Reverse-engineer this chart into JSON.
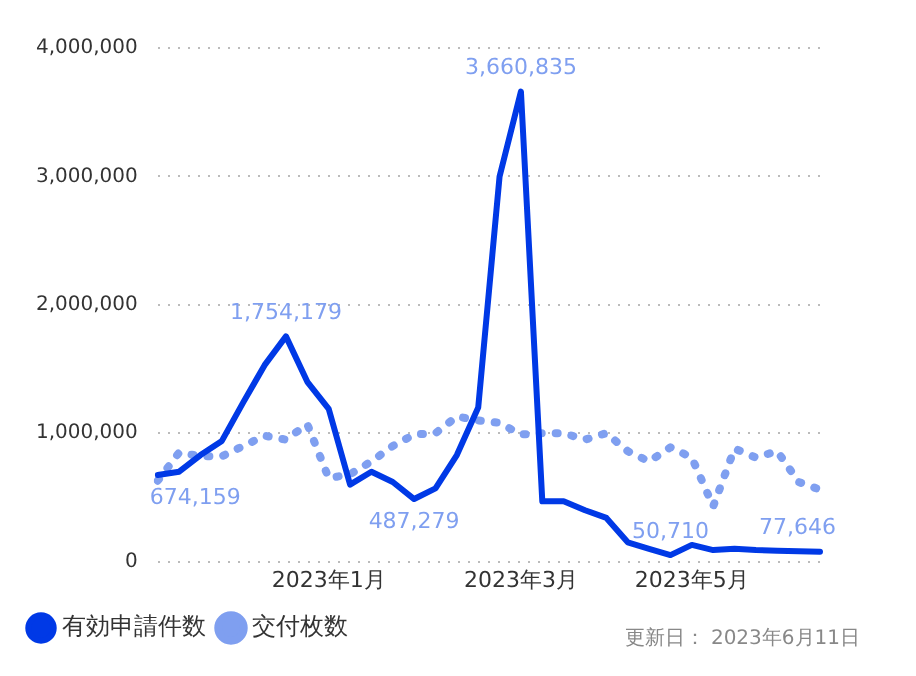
{
  "chart_data": {
    "type": "line",
    "categories": [
      null,
      null,
      null,
      null,
      null,
      null,
      null,
      null,
      "2023年1月",
      null,
      null,
      null,
      null,
      null,
      null,
      null,
      null,
      "2023年3月",
      null,
      null,
      null,
      null,
      null,
      null,
      null,
      "2023年5月",
      null,
      null,
      null,
      null,
      null,
      null
    ],
    "series": [
      {
        "name": "有効申請件数",
        "color": "#0039e6",
        "line_style": "solid",
        "values": [
          674159,
          700000,
          830000,
          940000,
          1240000,
          1530000,
          1754179,
          1400000,
          1190000,
          600000,
          700000,
          620000,
          487279,
          570000,
          830000,
          1200000,
          3000000,
          3660835,
          470000,
          470000,
          400000,
          340000,
          150000,
          100000,
          50710,
          130000,
          90000,
          100000,
          90000,
          85000,
          80000,
          77646
        ],
        "value_labels": [
          "674,159",
          null,
          null,
          null,
          null,
          null,
          "1,754,179",
          null,
          null,
          null,
          null,
          null,
          "487,279",
          null,
          null,
          null,
          null,
          "3,660,835",
          null,
          null,
          null,
          null,
          null,
          null,
          "50,710",
          null,
          null,
          null,
          null,
          null,
          null,
          "77,646"
        ]
      },
      {
        "name": "交付枚数",
        "color": "#7f9ff0",
        "line_style": "dotted",
        "values": [
          630000,
          850000,
          820000,
          820000,
          900000,
          980000,
          950000,
          1070000,
          650000,
          680000,
          780000,
          900000,
          990000,
          1000000,
          1130000,
          1100000,
          1080000,
          990000,
          1000000,
          1000000,
          950000,
          1000000,
          860000,
          780000,
          890000,
          810000,
          430000,
          880000,
          810000,
          860000,
          620000,
          560000
        ]
      }
    ],
    "ylim": [
      0,
      4000000
    ],
    "yticks": [
      {
        "value": 0,
        "label": "0"
      },
      {
        "value": 1000000,
        "label": "1,000,000"
      },
      {
        "value": 2000000,
        "label": "2,000,000"
      },
      {
        "value": 3000000,
        "label": "3,000,000"
      },
      {
        "value": 4000000,
        "label": "4,000,000"
      }
    ],
    "grid": "y",
    "legend": "bottom left",
    "marker": "none",
    "annotations": [
      "更新日： 2023年6月11日"
    ]
  }
}
